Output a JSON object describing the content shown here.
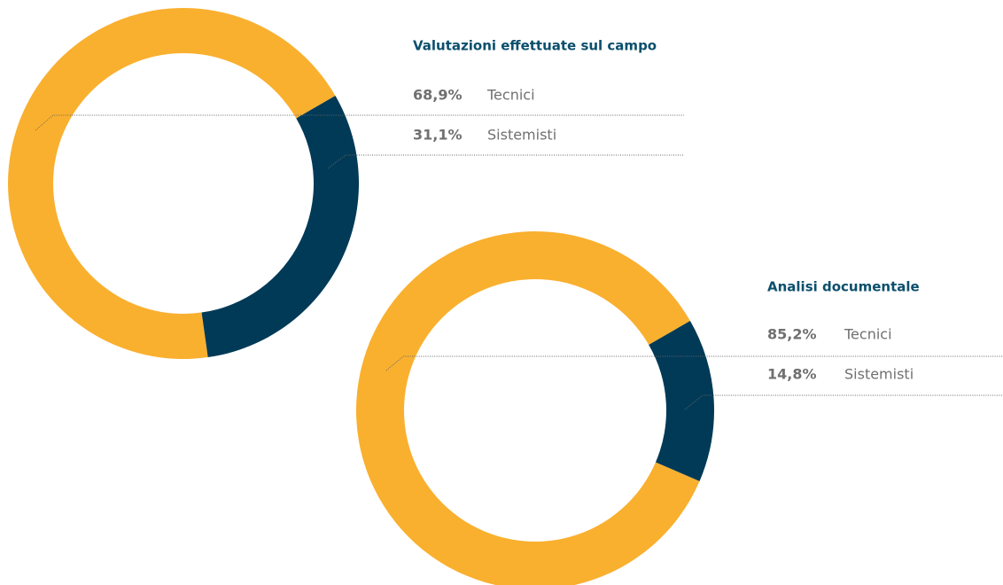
{
  "chart_data": [
    {
      "type": "pie",
      "title": "Valutazioni effettuate sul campo",
      "categories": [
        "Tecnici",
        "Sistemisti"
      ],
      "values": [
        68.9,
        31.1
      ],
      "value_labels": [
        "68,9%",
        "31,1%"
      ],
      "colors": [
        "#f9b02f",
        "#003a57"
      ]
    },
    {
      "type": "pie",
      "title": "Analisi documentale",
      "categories": [
        "Tecnici",
        "Sistemisti"
      ],
      "values": [
        85.2,
        14.8
      ],
      "value_labels": [
        "85,2%",
        "14,8%"
      ],
      "colors": [
        "#f9b02f",
        "#003a57"
      ]
    }
  ]
}
